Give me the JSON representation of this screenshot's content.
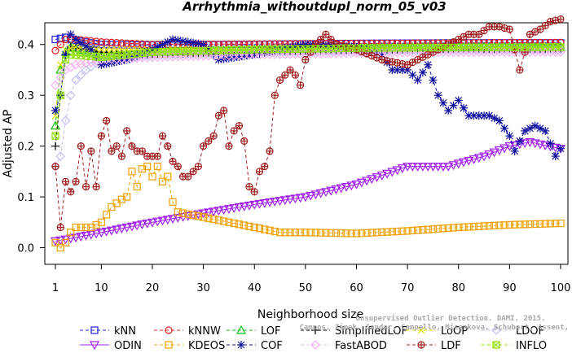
{
  "chart_data": {
    "type": "line",
    "title": "Arrhythmia_withoutdupl_norm_05_v03",
    "xlabel": "Neighborhood size",
    "ylabel": "Adjusted AP",
    "xlim": [
      1,
      100
    ],
    "ylim": [
      -0.02,
      0.43
    ],
    "xticks": [
      1,
      10,
      20,
      30,
      40,
      50,
      60,
      70,
      80,
      90,
      100
    ],
    "yticks": [
      0.0,
      0.1,
      0.2,
      0.3,
      0.4
    ],
    "ytick_labels": [
      "0.0",
      "0.1",
      "0.2",
      "0.3",
      "0.4"
    ],
    "grid": false,
    "legend_position": "bottom",
    "watermark_lines": [
      "Campos, Zimek, Sander, Campello, Micenkova, Schubert, Assent, Houle",
      "Unsupervised Outlier Detection. DAMI, 2015."
    ],
    "series": [
      {
        "name": "kNN",
        "color": "#2020e0",
        "marker": "square",
        "dashed": true,
        "points": [
          [
            1,
            0.41
          ],
          [
            2,
            0.412
          ],
          [
            3,
            0.414
          ],
          [
            5,
            0.408
          ],
          [
            10,
            0.4
          ],
          [
            20,
            0.399
          ],
          [
            40,
            0.4
          ],
          [
            60,
            0.402
          ],
          [
            80,
            0.403
          ],
          [
            100,
            0.403
          ]
        ]
      },
      {
        "name": "kNNW",
        "color": "#e02020",
        "marker": "circle",
        "dashed": true,
        "points": [
          [
            1,
            0.388
          ],
          [
            2,
            0.4
          ],
          [
            3,
            0.41
          ],
          [
            5,
            0.41
          ],
          [
            10,
            0.405
          ],
          [
            20,
            0.4
          ],
          [
            40,
            0.401
          ],
          [
            60,
            0.402
          ],
          [
            80,
            0.403
          ],
          [
            100,
            0.404
          ]
        ]
      },
      {
        "name": "LOF",
        "color": "#10c010",
        "marker": "triangle",
        "dashed": true,
        "points": [
          [
            1,
            0.24
          ],
          [
            2,
            0.35
          ],
          [
            3,
            0.385
          ],
          [
            4,
            0.395
          ],
          [
            10,
            0.378
          ],
          [
            20,
            0.385
          ],
          [
            40,
            0.39
          ],
          [
            60,
            0.393
          ],
          [
            80,
            0.395
          ],
          [
            100,
            0.395
          ]
        ]
      },
      {
        "name": "SimplifiedLOF",
        "color": "#000000",
        "marker": "plus",
        "dashed": true,
        "points": [
          [
            1,
            0.2
          ],
          [
            2,
            0.3
          ],
          [
            3,
            0.38
          ],
          [
            4,
            0.395
          ],
          [
            10,
            0.385
          ],
          [
            20,
            0.38
          ],
          [
            40,
            0.385
          ],
          [
            60,
            0.39
          ],
          [
            80,
            0.39
          ],
          [
            100,
            0.392
          ]
        ]
      },
      {
        "name": "LoOP",
        "color": "#e0e000",
        "marker": "x",
        "dashed": true,
        "points": [
          [
            1,
            0.26
          ],
          [
            2,
            0.36
          ],
          [
            3,
            0.39
          ],
          [
            5,
            0.395
          ],
          [
            10,
            0.39
          ],
          [
            20,
            0.39
          ],
          [
            40,
            0.39
          ],
          [
            60,
            0.392
          ],
          [
            80,
            0.393
          ],
          [
            100,
            0.393
          ]
        ]
      },
      {
        "name": "LDOF",
        "color": "#c0c0f0",
        "marker": "diamond",
        "dashed": true,
        "points": [
          [
            1,
            0.16
          ],
          [
            2,
            0.18
          ],
          [
            3,
            0.25
          ],
          [
            4,
            0.3
          ],
          [
            5,
            0.33
          ],
          [
            7,
            0.35
          ],
          [
            10,
            0.37
          ],
          [
            20,
            0.38
          ],
          [
            40,
            0.385
          ],
          [
            60,
            0.388
          ],
          [
            80,
            0.39
          ],
          [
            100,
            0.39
          ]
        ]
      },
      {
        "name": "ODIN",
        "color": "#a020f0",
        "marker": "triangle-down",
        "dashed": false,
        "points": [
          [
            1,
            0.013
          ],
          [
            5,
            0.02
          ],
          [
            10,
            0.03
          ],
          [
            20,
            0.05
          ],
          [
            30,
            0.068
          ],
          [
            40,
            0.085
          ],
          [
            50,
            0.1
          ],
          [
            60,
            0.125
          ],
          [
            70,
            0.16
          ],
          [
            78,
            0.16
          ],
          [
            85,
            0.18
          ],
          [
            90,
            0.2
          ],
          [
            94,
            0.208
          ],
          [
            100,
            0.195
          ]
        ]
      },
      {
        "name": "KDEOS",
        "color": "#f0a000",
        "marker": "square",
        "dashed": true,
        "points": [
          [
            1,
            0.01
          ],
          [
            2,
            0.0
          ],
          [
            3,
            0.01
          ],
          [
            4,
            0.03
          ],
          [
            5,
            0.04
          ],
          [
            8,
            0.04
          ],
          [
            10,
            0.05
          ],
          [
            12,
            0.08
          ],
          [
            14,
            0.095
          ],
          [
            15,
            0.1
          ],
          [
            16,
            0.15
          ],
          [
            17,
            0.12
          ],
          [
            18,
            0.155
          ],
          [
            19,
            0.16
          ],
          [
            20,
            0.14
          ],
          [
            21,
            0.16
          ],
          [
            22,
            0.13
          ],
          [
            23,
            0.14
          ],
          [
            24,
            0.09
          ],
          [
            25,
            0.07
          ],
          [
            30,
            0.06
          ],
          [
            35,
            0.05
          ],
          [
            40,
            0.04
          ],
          [
            45,
            0.03
          ],
          [
            50,
            0.03
          ],
          [
            60,
            0.028
          ],
          [
            70,
            0.033
          ],
          [
            80,
            0.04
          ],
          [
            90,
            0.045
          ],
          [
            100,
            0.048
          ]
        ]
      },
      {
        "name": "COF",
        "color": "#1010a0",
        "marker": "star",
        "dashed": true,
        "points": [
          [
            1,
            0.27
          ],
          [
            2,
            0.3
          ],
          [
            3,
            0.38
          ],
          [
            4,
            0.42
          ],
          [
            5,
            0.41
          ],
          [
            8,
            0.39
          ],
          [
            10,
            0.36
          ],
          [
            15,
            0.37
          ],
          [
            20,
            0.39
          ],
          [
            24,
            0.41
          ],
          [
            30,
            0.4
          ],
          [
            33,
            0.37
          ],
          [
            40,
            0.38
          ],
          [
            50,
            0.4
          ],
          [
            60,
            0.395
          ],
          [
            65,
            0.38
          ],
          [
            67,
            0.35
          ],
          [
            70,
            0.35
          ],
          [
            72,
            0.33
          ],
          [
            74,
            0.36
          ],
          [
            76,
            0.3
          ],
          [
            78,
            0.27
          ],
          [
            80,
            0.29
          ],
          [
            82,
            0.26
          ],
          [
            86,
            0.26
          ],
          [
            88,
            0.25
          ],
          [
            90,
            0.22
          ],
          [
            91,
            0.19
          ],
          [
            93,
            0.23
          ],
          [
            95,
            0.24
          ],
          [
            97,
            0.23
          ],
          [
            99,
            0.18
          ],
          [
            100,
            0.195
          ]
        ]
      },
      {
        "name": "FastABOD",
        "color": "#f0b0f0",
        "marker": "diamond",
        "dashed": true,
        "points": [
          [
            1,
            0.32
          ],
          [
            3,
            0.35
          ],
          [
            5,
            0.36
          ],
          [
            8,
            0.365
          ],
          [
            10,
            0.37
          ],
          [
            20,
            0.375
          ],
          [
            40,
            0.38
          ],
          [
            60,
            0.383
          ],
          [
            80,
            0.385
          ],
          [
            100,
            0.385
          ]
        ]
      },
      {
        "name": "LDF",
        "color": "#a02020",
        "marker": "circle-plus",
        "dashed": true,
        "points": [
          [
            1,
            0.16
          ],
          [
            2,
            0.04
          ],
          [
            3,
            0.13
          ],
          [
            4,
            0.11
          ],
          [
            5,
            0.13
          ],
          [
            6,
            0.2
          ],
          [
            7,
            0.12
          ],
          [
            8,
            0.19
          ],
          [
            9,
            0.12
          ],
          [
            10,
            0.22
          ],
          [
            11,
            0.25
          ],
          [
            12,
            0.19
          ],
          [
            13,
            0.2
          ],
          [
            14,
            0.18
          ],
          [
            15,
            0.23
          ],
          [
            16,
            0.2
          ],
          [
            17,
            0.19
          ],
          [
            18,
            0.19
          ],
          [
            19,
            0.18
          ],
          [
            20,
            0.18
          ],
          [
            21,
            0.18
          ],
          [
            22,
            0.22
          ],
          [
            23,
            0.2
          ],
          [
            24,
            0.17
          ],
          [
            25,
            0.16
          ],
          [
            26,
            0.14
          ],
          [
            27,
            0.14
          ],
          [
            28,
            0.15
          ],
          [
            29,
            0.16
          ],
          [
            30,
            0.2
          ],
          [
            31,
            0.21
          ],
          [
            32,
            0.22
          ],
          [
            33,
            0.26
          ],
          [
            34,
            0.27
          ],
          [
            35,
            0.2
          ],
          [
            36,
            0.23
          ],
          [
            37,
            0.24
          ],
          [
            38,
            0.21
          ],
          [
            39,
            0.12
          ],
          [
            40,
            0.11
          ],
          [
            41,
            0.15
          ],
          [
            42,
            0.16
          ],
          [
            43,
            0.19
          ],
          [
            44,
            0.3
          ],
          [
            45,
            0.33
          ],
          [
            46,
            0.34
          ],
          [
            47,
            0.35
          ],
          [
            48,
            0.34
          ],
          [
            49,
            0.32
          ],
          [
            50,
            0.37
          ],
          [
            52,
            0.4
          ],
          [
            54,
            0.42
          ],
          [
            56,
            0.4
          ],
          [
            60,
            0.39
          ],
          [
            65,
            0.37
          ],
          [
            70,
            0.36
          ],
          [
            74,
            0.38
          ],
          [
            76,
            0.39
          ],
          [
            78,
            0.4
          ],
          [
            80,
            0.41
          ],
          [
            82,
            0.42
          ],
          [
            84,
            0.42
          ],
          [
            86,
            0.435
          ],
          [
            88,
            0.435
          ],
          [
            90,
            0.43
          ],
          [
            92,
            0.35
          ],
          [
            94,
            0.42
          ],
          [
            96,
            0.43
          ],
          [
            98,
            0.445
          ],
          [
            100,
            0.45
          ]
        ]
      },
      {
        "name": "INFLO",
        "color": "#90e000",
        "marker": "square-x",
        "dashed": true,
        "points": [
          [
            1,
            0.22
          ],
          [
            2,
            0.3
          ],
          [
            3,
            0.37
          ],
          [
            4,
            0.38
          ],
          [
            10,
            0.375
          ],
          [
            20,
            0.385
          ],
          [
            40,
            0.39
          ],
          [
            60,
            0.393
          ],
          [
            80,
            0.394
          ],
          [
            100,
            0.395
          ]
        ]
      }
    ],
    "legend_rows": [
      [
        "kNN",
        "kNNW",
        "LOF",
        "SimplifiedLOF",
        "LoOP",
        "LDOF"
      ],
      [
        "ODIN",
        "KDEOS",
        "COF",
        "FastABOD",
        "LDF",
        "INFLO"
      ]
    ]
  }
}
